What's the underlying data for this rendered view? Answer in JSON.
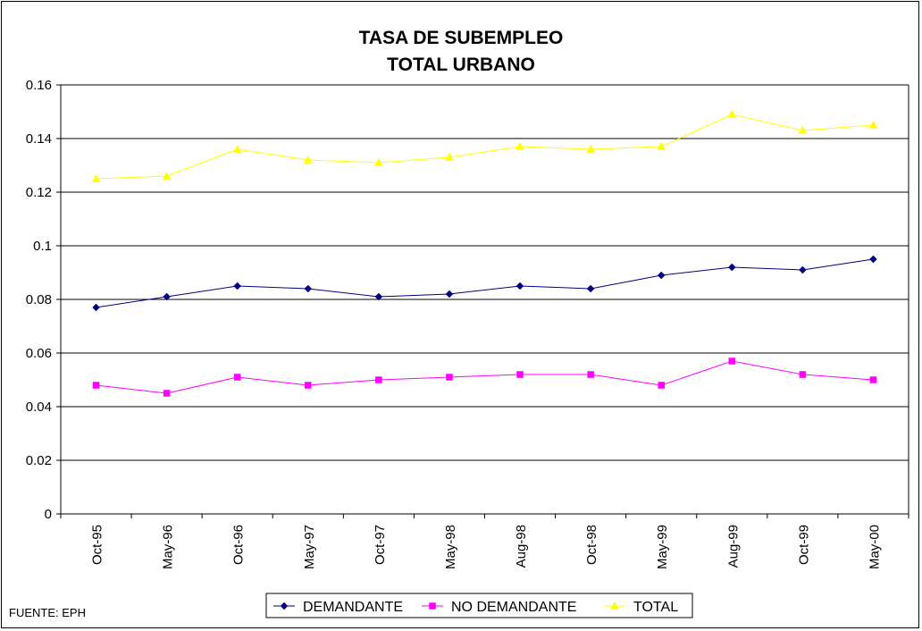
{
  "chart_data": {
    "type": "line",
    "title": [
      "TASA DE SUBEMPLEO",
      "TOTAL URBANO"
    ],
    "categories": [
      "Oct-95",
      "May-96",
      "Oct-96",
      "May-97",
      "Oct-97",
      "May-98",
      "Aug-98",
      "Oct-98",
      "May-99",
      "Aug-99",
      "Oct-99",
      "May-00"
    ],
    "ylim": [
      0,
      0.16
    ],
    "yticks": [
      "0",
      "0.02",
      "0.04",
      "0.06",
      "0.08",
      "0.1",
      "0.12",
      "0.14",
      "0.16"
    ],
    "ytick_values": [
      0,
      0.02,
      0.04,
      0.06,
      0.08,
      0.1,
      0.12,
      0.14,
      0.16
    ],
    "grid": true,
    "legend_position": "bottom",
    "series": [
      {
        "name": "DEMANDANTE",
        "color": "#000080",
        "marker": "diamond",
        "values": [
          0.077,
          0.081,
          0.085,
          0.084,
          0.081,
          0.082,
          0.085,
          0.084,
          0.089,
          0.092,
          0.091,
          0.095
        ]
      },
      {
        "name": "NO DEMANDANTE",
        "color": "#ff00ff",
        "marker": "square",
        "values": [
          0.048,
          0.045,
          0.051,
          0.048,
          0.05,
          0.051,
          0.052,
          0.052,
          0.048,
          0.057,
          0.052,
          0.05
        ]
      },
      {
        "name": "TOTAL",
        "color": "#ffff00",
        "marker": "triangle",
        "values": [
          0.125,
          0.126,
          0.136,
          0.132,
          0.131,
          0.133,
          0.137,
          0.136,
          0.137,
          0.149,
          0.143,
          0.145
        ]
      }
    ],
    "source": "FUENTE: EPH"
  }
}
